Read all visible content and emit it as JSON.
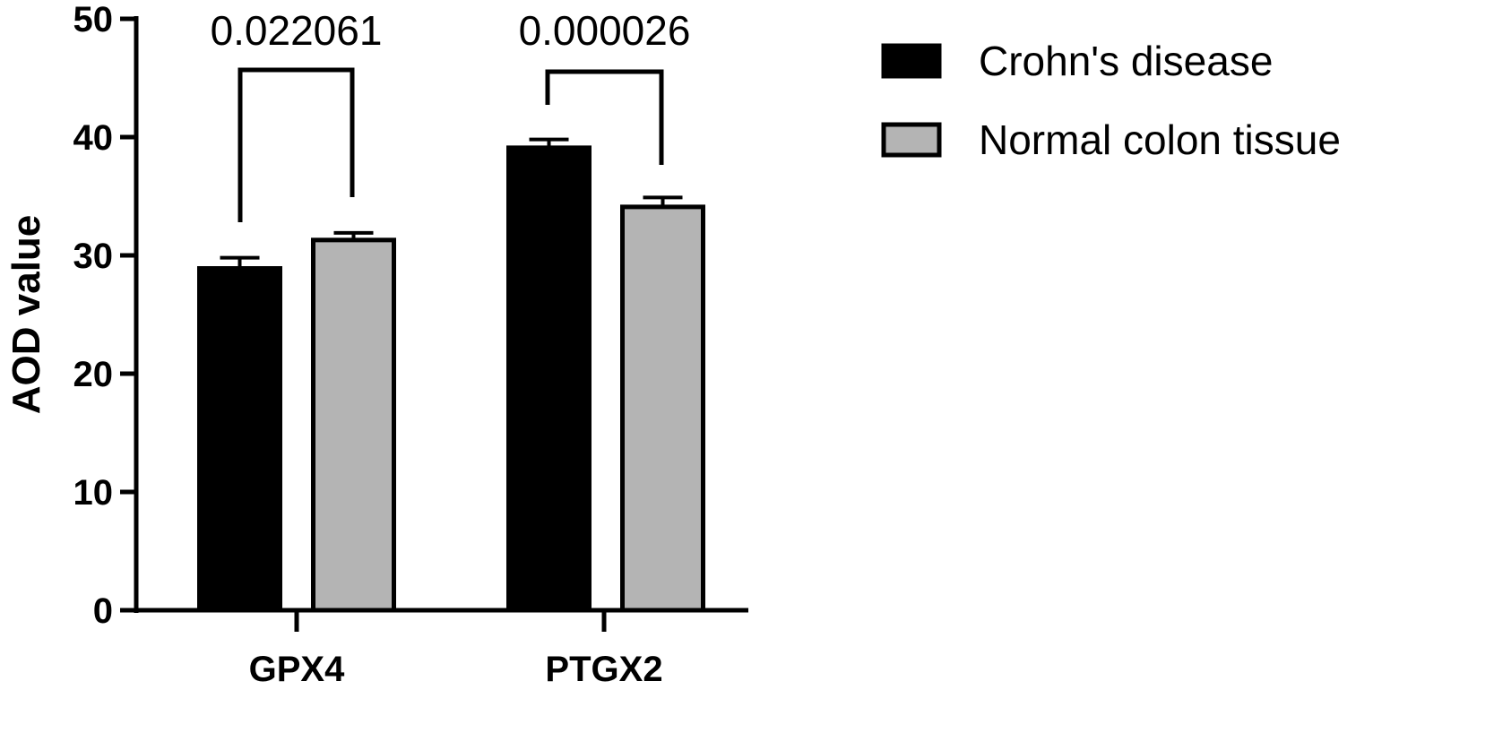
{
  "chart_data": {
    "type": "bar",
    "categories": [
      "GPX4",
      "PTGX2"
    ],
    "series": [
      {
        "name": "Crohn's disease",
        "values": [
          28.9,
          39.1
        ],
        "errors": [
          0.9,
          0.7
        ],
        "color": "#000000"
      },
      {
        "name": "Normal colon tissue",
        "values": [
          31.3,
          34.1
        ],
        "errors": [
          0.6,
          0.8
        ],
        "color": "#b4b4b4"
      }
    ],
    "ylabel": "AOD value",
    "xlabel": "",
    "ylim": [
      0,
      50
    ],
    "yticks": [
      0,
      10,
      20,
      30,
      40,
      50
    ],
    "ytick_labels": [
      "0",
      "10",
      "20",
      "30",
      "40",
      "50"
    ],
    "grid": false,
    "legend_position": "top-right",
    "comparisons": [
      {
        "category": "GPX4",
        "label": "0.022061"
      },
      {
        "category": "PTGX2",
        "label": "0.000026"
      }
    ]
  }
}
